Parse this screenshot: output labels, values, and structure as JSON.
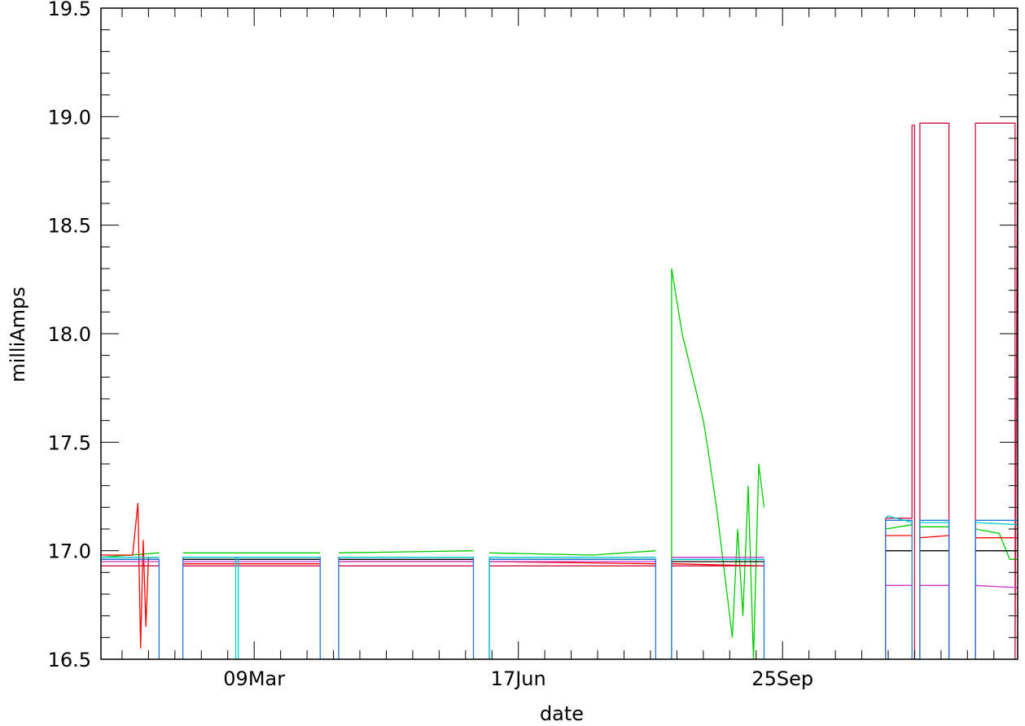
{
  "chart_data": {
    "type": "line",
    "title": "",
    "xlabel": "date",
    "ylabel": "milliAmps",
    "ylim": [
      16.5,
      19.5
    ],
    "xlim": [
      "2007-01-10",
      "2007-12-23"
    ],
    "x_ticks": [
      {
        "date": "2007-03-09",
        "label": "09Mar"
      },
      {
        "date": "2007-06-17",
        "label": "17Jun"
      },
      {
        "date": "2007-09-25",
        "label": "25Sep"
      }
    ],
    "y_ticks": [
      {
        "value": 16.5,
        "label": "16.5"
      },
      {
        "value": 17.0,
        "label": "17.0"
      },
      {
        "value": 17.5,
        "label": "17.5"
      },
      {
        "value": 18.0,
        "label": "18.0"
      },
      {
        "value": 18.5,
        "label": "18.5"
      },
      {
        "value": 19.0,
        "label": "19.0"
      },
      {
        "value": 19.5,
        "label": "19.5"
      }
    ],
    "grid": false,
    "legend": "none",
    "series": [
      {
        "color": "#00cc00",
        "segments": [
          {
            "dates": [
              "2007-01-10",
              "2007-02-01"
            ],
            "values": [
              16.97,
              16.99
            ]
          },
          {
            "dates": [
              "2007-02-10",
              "2007-04-03"
            ],
            "values": [
              16.99,
              16.99
            ]
          },
          {
            "dates": [
              "2007-04-10",
              "2007-05-31"
            ],
            "values": [
              16.99,
              17.0
            ]
          },
          {
            "dates": [
              "2007-06-06",
              "2007-07-15"
            ],
            "values": [
              16.99,
              16.98
            ]
          },
          {
            "dates": [
              "2007-07-15",
              "2007-08-08"
            ],
            "values": [
              16.98,
              17.0
            ]
          },
          {
            "dates": [
              "2007-08-14",
              "2007-08-14",
              "2007-08-16",
              "2007-08-18",
              "2007-08-20",
              "2007-08-23",
              "2007-08-26",
              "2007-08-28",
              "2007-08-31",
              "2007-09-02",
              "2007-09-04",
              "2007-09-06",
              "2007-09-08",
              "2007-09-10",
              "2007-09-12",
              "2007-09-14",
              "2007-09-16",
              "2007-09-18"
            ],
            "values": [
              16.5,
              18.3,
              18.15,
              18.0,
              17.9,
              17.75,
              17.6,
              17.45,
              17.2,
              17.0,
              16.8,
              16.6,
              17.1,
              16.7,
              17.3,
              16.5,
              17.4,
              17.2
            ]
          },
          {
            "dates": [
              "2007-11-03",
              "2007-11-13"
            ],
            "values": [
              17.1,
              17.12
            ]
          },
          {
            "dates": [
              "2007-11-16",
              "2007-11-27"
            ],
            "values": [
              17.11,
              17.11
            ]
          },
          {
            "dates": [
              "2007-12-07",
              "2007-12-16",
              "2007-12-20",
              "2007-12-23"
            ],
            "values": [
              17.1,
              17.08,
              16.96,
              16.96
            ]
          }
        ]
      },
      {
        "color": "#ff0000",
        "segments": [
          {
            "dates": [
              "2007-01-10",
              "2007-01-22",
              "2007-01-24",
              "2007-01-25",
              "2007-01-26",
              "2007-01-27",
              "2007-01-28",
              "2007-02-01"
            ],
            "values": [
              16.98,
              16.98,
              17.22,
              16.55,
              17.05,
              16.65,
              16.97,
              16.97
            ]
          },
          {
            "dates": [
              "2007-02-10",
              "2007-04-03"
            ],
            "values": [
              16.94,
              16.94
            ]
          },
          {
            "dates": [
              "2007-04-10",
              "2007-05-31"
            ],
            "values": [
              16.95,
              16.95
            ]
          },
          {
            "dates": [
              "2007-06-06",
              "2007-08-08"
            ],
            "values": [
              16.95,
              16.94
            ]
          },
          {
            "dates": [
              "2007-08-14",
              "2007-09-18"
            ],
            "values": [
              16.94,
              16.93
            ]
          },
          {
            "dates": [
              "2007-11-03",
              "2007-11-13"
            ],
            "values": [
              17.07,
              17.07
            ]
          },
          {
            "dates": [
              "2007-11-16",
              "2007-11-27"
            ],
            "values": [
              17.06,
              17.07
            ]
          },
          {
            "dates": [
              "2007-12-07",
              "2007-12-23"
            ],
            "values": [
              17.06,
              17.06
            ]
          }
        ]
      },
      {
        "color": "#cc1144",
        "segments": [
          {
            "dates": [
              "2007-01-10",
              "2007-02-01"
            ],
            "values": [
              16.93,
              16.93
            ]
          },
          {
            "dates": [
              "2007-02-10",
              "2007-04-03"
            ],
            "values": [
              16.93,
              16.93
            ]
          },
          {
            "dates": [
              "2007-04-10",
              "2007-05-31"
            ],
            "values": [
              16.93,
              16.93
            ]
          },
          {
            "dates": [
              "2007-06-06",
              "2007-08-08"
            ],
            "values": [
              16.93,
              16.93
            ]
          },
          {
            "dates": [
              "2007-08-14",
              "2007-09-18"
            ],
            "values": [
              16.93,
              16.93
            ]
          },
          {
            "dates": [
              "2007-11-03",
              "2007-11-03",
              "2007-11-13",
              "2007-11-13",
              "2007-11-14",
              "2007-11-14",
              "2007-11-16",
              "2007-11-16",
              "2007-11-27",
              "2007-11-27"
            ],
            "values": [
              16.5,
              17.15,
              17.15,
              18.96,
              18.96,
              16.5,
              16.5,
              18.97,
              18.97,
              16.5
            ]
          },
          {
            "dates": [
              "2007-12-07",
              "2007-12-07",
              "2007-12-22",
              "2007-12-22",
              "2007-12-23"
            ],
            "values": [
              16.5,
              18.97,
              18.97,
              16.5,
              19.0
            ]
          }
        ]
      },
      {
        "color": "#000000",
        "segments": [
          {
            "dates": [
              "2007-01-10",
              "2007-02-01"
            ],
            "values": [
              16.96,
              16.96
            ]
          },
          {
            "dates": [
              "2007-02-10",
              "2007-04-03"
            ],
            "values": [
              16.96,
              16.96
            ]
          },
          {
            "dates": [
              "2007-04-10",
              "2007-05-31"
            ],
            "values": [
              16.96,
              16.96
            ]
          },
          {
            "dates": [
              "2007-06-06",
              "2007-08-08"
            ],
            "values": [
              16.96,
              16.96
            ]
          },
          {
            "dates": [
              "2007-08-14",
              "2007-09-18"
            ],
            "values": [
              16.95,
              16.95
            ]
          },
          {
            "dates": [
              "2007-11-03",
              "2007-11-13"
            ],
            "values": [
              17.0,
              17.0
            ]
          },
          {
            "dates": [
              "2007-11-16",
              "2007-11-27"
            ],
            "values": [
              17.0,
              17.0
            ]
          },
          {
            "dates": [
              "2007-12-07",
              "2007-12-23"
            ],
            "values": [
              17.0,
              17.0
            ]
          }
        ]
      },
      {
        "color": "#cc33cc",
        "segments": [
          {
            "dates": [
              "2007-01-10",
              "2007-02-01"
            ],
            "values": [
              16.95,
              16.95
            ]
          },
          {
            "dates": [
              "2007-02-10",
              "2007-04-03"
            ],
            "values": [
              16.95,
              16.95
            ]
          },
          {
            "dates": [
              "2007-04-10",
              "2007-05-31"
            ],
            "values": [
              16.95,
              16.95
            ]
          },
          {
            "dates": [
              "2007-06-06",
              "2007-08-08"
            ],
            "values": [
              16.95,
              16.95
            ]
          },
          {
            "dates": [
              "2007-08-14",
              "2007-09-18"
            ],
            "values": [
              16.97,
              16.97
            ]
          },
          {
            "dates": [
              "2007-11-03",
              "2007-11-13"
            ],
            "values": [
              16.84,
              16.84
            ]
          },
          {
            "dates": [
              "2007-11-16",
              "2007-11-27"
            ],
            "values": [
              16.84,
              16.84
            ]
          },
          {
            "dates": [
              "2007-12-07",
              "2007-12-23"
            ],
            "values": [
              16.84,
              16.83
            ]
          }
        ]
      },
      {
        "color": "#1f77d4",
        "segments": [
          {
            "dates": [
              "2007-01-10",
              "2007-02-01",
              "2007-02-01",
              "2007-02-03",
              "2007-02-03",
              "2007-02-10",
              "2007-02-10",
              "2007-04-03",
              "2007-04-03",
              "2007-04-10",
              "2007-04-10",
              "2007-05-31",
              "2007-05-31",
              "2007-06-06",
              "2007-06-06",
              "2007-08-08",
              "2007-08-08",
              "2007-08-14",
              "2007-08-14",
              "2007-09-18",
              "2007-09-18"
            ],
            "values": [
              16.96,
              16.96,
              16.5,
              16.5,
              16.5,
              16.5,
              16.97,
              16.97,
              16.5,
              16.5,
              16.97,
              16.97,
              16.5,
              16.5,
              16.96,
              16.96,
              16.5,
              16.5,
              16.96,
              16.96,
              16.5
            ]
          },
          {
            "dates": [
              "2007-11-03",
              "2007-11-03",
              "2007-11-13",
              "2007-11-13",
              "2007-11-16",
              "2007-11-16",
              "2007-11-27",
              "2007-11-27"
            ],
            "values": [
              16.5,
              17.14,
              17.14,
              16.5,
              16.5,
              17.14,
              17.14,
              16.5
            ]
          },
          {
            "dates": [
              "2007-12-07",
              "2007-12-07",
              "2007-12-23"
            ],
            "values": [
              16.5,
              17.14,
              17.14
            ]
          }
        ]
      },
      {
        "color": "#00cccc",
        "segments": [
          {
            "dates": [
              "2007-01-10",
              "2007-02-01"
            ],
            "values": [
              16.97,
              16.97
            ]
          },
          {
            "dates": [
              "2007-02-10",
              "2007-03-02",
              "2007-03-02",
              "2007-03-03",
              "2007-03-03",
              "2007-04-03"
            ],
            "values": [
              16.97,
              16.97,
              16.5,
              16.5,
              16.97,
              16.97
            ]
          },
          {
            "dates": [
              "2007-04-10",
              "2007-05-31"
            ],
            "values": [
              16.97,
              16.97
            ]
          },
          {
            "dates": [
              "2007-06-06",
              "2007-06-06",
              "2007-08-08"
            ],
            "values": [
              16.5,
              16.97,
              16.97
            ]
          },
          {
            "dates": [
              "2007-08-14",
              "2007-09-18"
            ],
            "values": [
              16.96,
              16.96
            ]
          },
          {
            "dates": [
              "2007-11-03",
              "2007-11-04",
              "2007-11-13"
            ],
            "values": [
              17.15,
              17.16,
              17.13
            ]
          },
          {
            "dates": [
              "2007-11-16",
              "2007-11-27"
            ],
            "values": [
              17.13,
              17.13
            ]
          },
          {
            "dates": [
              "2007-12-07",
              "2007-12-23"
            ],
            "values": [
              17.13,
              17.12
            ]
          }
        ]
      }
    ]
  }
}
